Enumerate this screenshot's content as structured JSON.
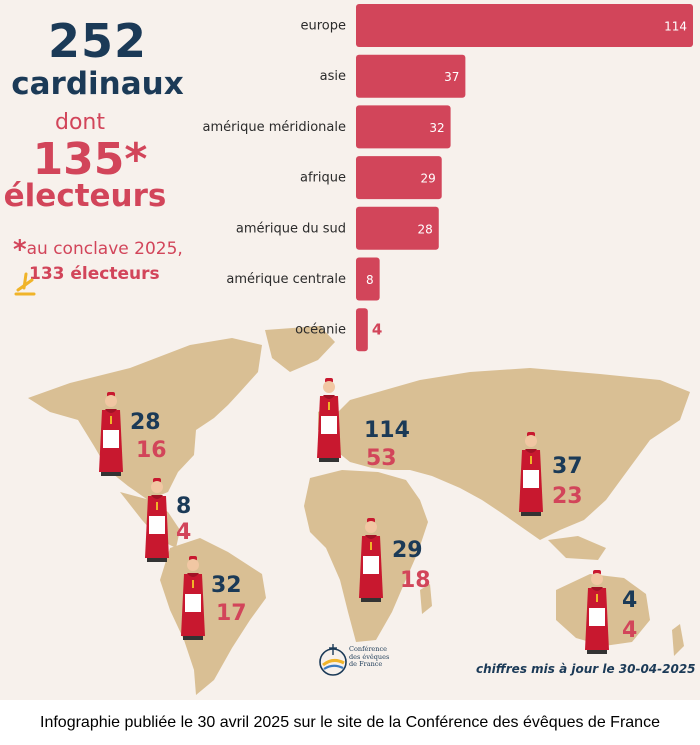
{
  "headline": {
    "total_number": "252",
    "total_label": "cardinaux",
    "dont_label": "dont",
    "electors_number": "135*",
    "electors_label": "électeurs",
    "conclave_star": "*",
    "conclave_line1": "au conclave 2025,",
    "conclave_line2": "133 électeurs"
  },
  "chart_data": {
    "type": "bar",
    "orientation": "horizontal",
    "categories": [
      "europe",
      "asie",
      "amérique méridionale",
      "afrique",
      "amérique du sud",
      "amérique centrale",
      "océanie"
    ],
    "values": [
      114,
      37,
      32,
      29,
      28,
      8,
      4
    ],
    "data_labels": [
      "114",
      "37",
      "32",
      "29",
      "28",
      "8",
      "4"
    ],
    "xlim": [
      0,
      114
    ],
    "bar_color": "#d2455a"
  },
  "map": {
    "land_color": "#d9bf94",
    "regions": [
      {
        "total": "28",
        "electors": "16"
      },
      {
        "total": "8",
        "electors": "4"
      },
      {
        "total": "32",
        "electors": "17"
      },
      {
        "total": "114",
        "electors": "53"
      },
      {
        "total": "29",
        "electors": "18"
      },
      {
        "total": "37",
        "electors": "23"
      },
      {
        "total": "4",
        "electors": "4"
      }
    ]
  },
  "logo": {
    "line1": "Conférence",
    "line2": "des évêques",
    "line3": "de France",
    "icon": "cef-logo-icon"
  },
  "update_note": "chiffres mis à jour le 30-04-2025",
  "caption": "Infographie publiée le 30 avril 2025 sur le site de la Conférence des évêques de France",
  "colors": {
    "navy": "#1b3a57",
    "red": "#d2455a",
    "background": "#f7f1ec",
    "land": "#d9bf94"
  }
}
